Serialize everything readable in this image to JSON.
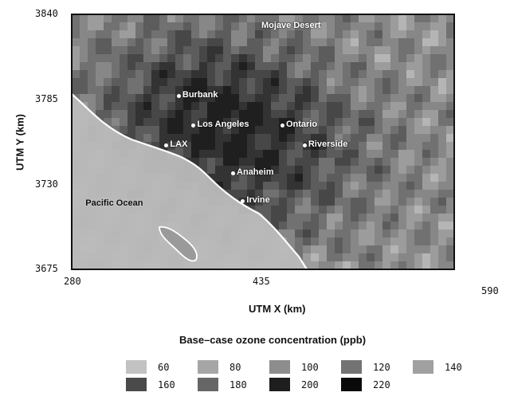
{
  "map": {
    "xlabel": "UTM X (km)",
    "ylabel": "UTM Y (km)",
    "x_ticks": [
      "280",
      "435",
      "590"
    ],
    "y_ticks": [
      "3840",
      "3785",
      "3730",
      "3675"
    ],
    "places": [
      {
        "name": "Mojave Desert",
        "x": 435,
        "y": 3832
      },
      {
        "name": "Burbank",
        "x": 371,
        "y": 3787
      },
      {
        "name": "Los Angeles",
        "x": 383,
        "y": 3768
      },
      {
        "name": "Ontario",
        "x": 455,
        "y": 3768
      },
      {
        "name": "LAX",
        "x": 361,
        "y": 3755
      },
      {
        "name": "Riverside",
        "x": 473,
        "y": 3755
      },
      {
        "name": "Anaheim",
        "x": 415,
        "y": 3737
      },
      {
        "name": "Irvine",
        "x": 423,
        "y": 3719
      },
      {
        "name": "Pacific Ocean",
        "x": 317,
        "y": 3717
      }
    ],
    "colors": {
      "ocean": "#bcbcbc",
      "coast": "#ffffff",
      "frame": "#111111"
    }
  },
  "legend": {
    "title": "Base–case ozone concentration (ppb)",
    "items": [
      {
        "label": "60",
        "color": "#c2c2c2"
      },
      {
        "label": "80",
        "color": "#a6a6a6"
      },
      {
        "label": "100",
        "color": "#8d8d8d"
      },
      {
        "label": "120",
        "color": "#737373"
      },
      {
        "label": "140",
        "color": "#a0a0a0"
      },
      {
        "label": "160",
        "color": "#4a4a4a"
      },
      {
        "label": "180",
        "color": "#666666"
      },
      {
        "label": "200",
        "color": "#1e1e1e"
      },
      {
        "label": "220",
        "color": "#0a0a0a"
      }
    ]
  }
}
